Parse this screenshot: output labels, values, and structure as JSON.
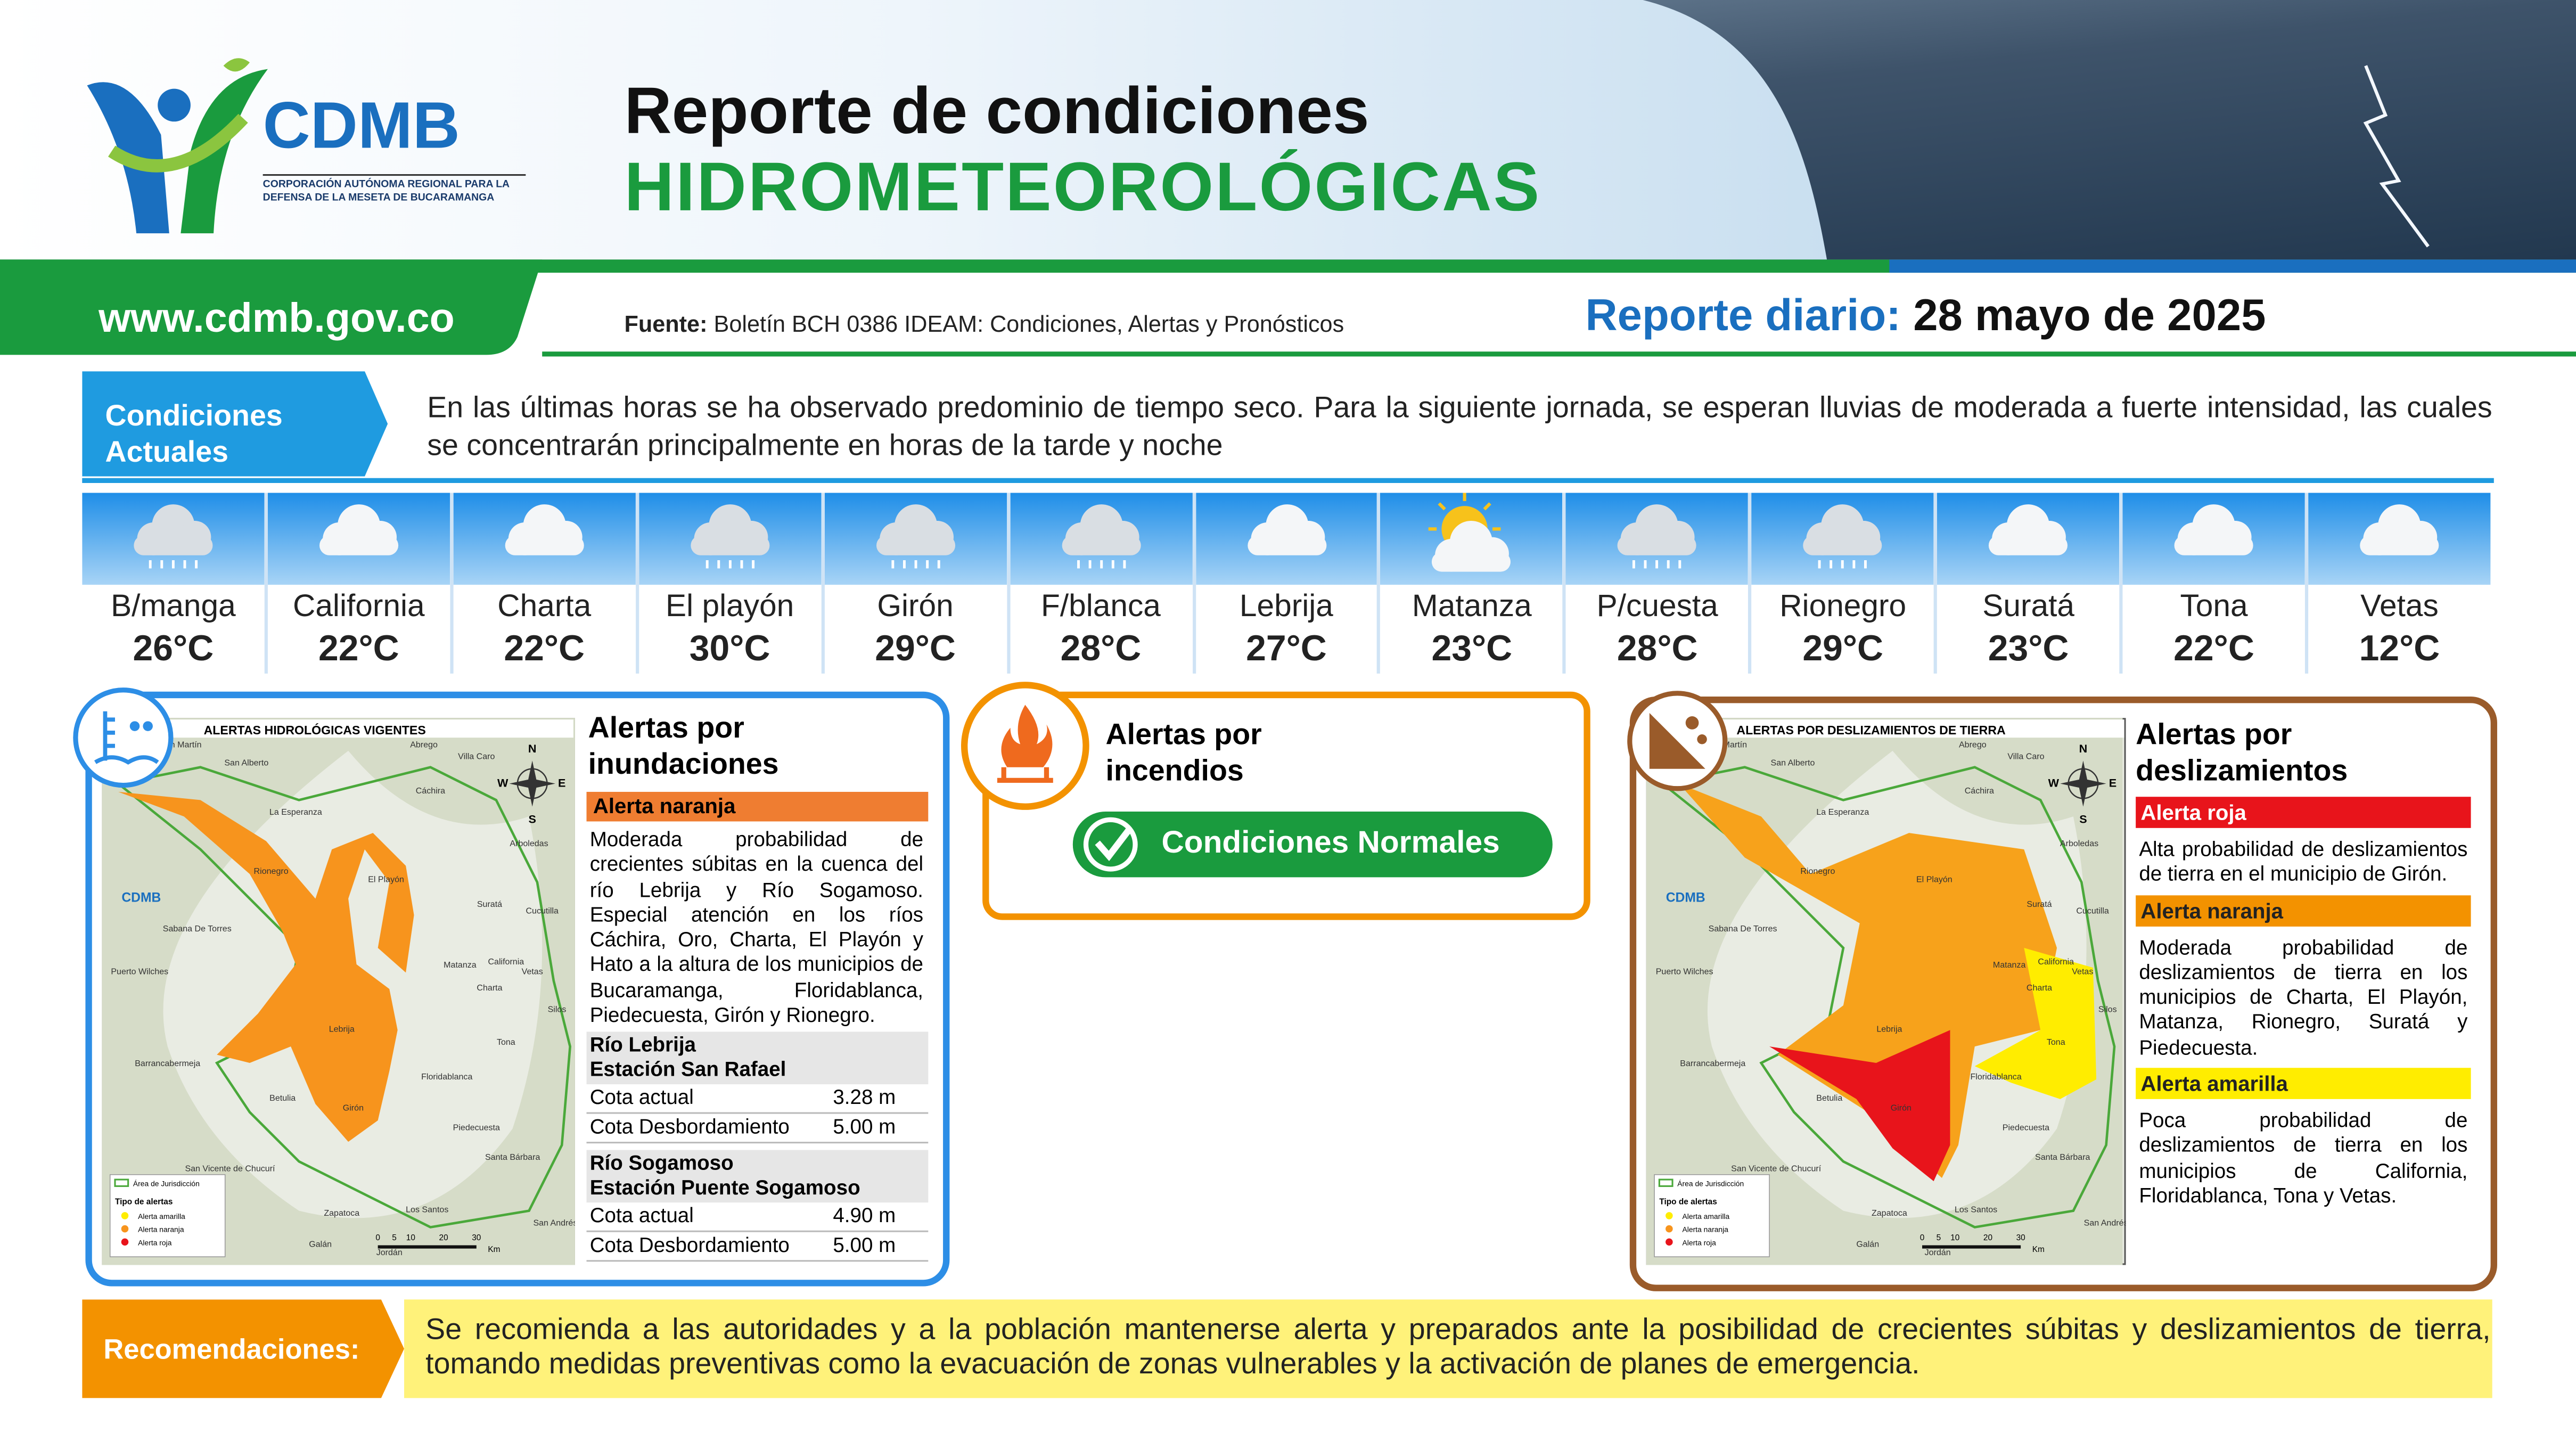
{
  "header": {
    "logo_name": "CDMB",
    "logo_subtitle": "CORPORACIÓN AUTÓNOMA REGIONAL PARA LA DEFENSA DE LA MESETA DE BUCARAMANGA",
    "title_line1": "Reporte de condiciones",
    "title_line2": "HIDROMETEOROLÓGICAS",
    "website": "www.cdmb.gov.co",
    "source_label": "Fuente:",
    "source_text": "Boletín BCH 0386 IDEAM: Condiciones, Alertas y Pronósticos",
    "report_label": "Reporte diario:",
    "report_date": "28 mayo de 2025"
  },
  "conditions": {
    "label": "Condiciones Actuales",
    "text": "En las últimas horas se ha observado predominio de tiempo seco. Para la siguiente jornada, se esperan lluvias de moderada a fuerte intensidad, las cuales se concentrarán principalmente en horas de la tarde y noche"
  },
  "forecast": [
    {
      "city": "B/manga",
      "temp": "26°C",
      "icon": "rain"
    },
    {
      "city": "California",
      "temp": "22°C",
      "icon": "cloud"
    },
    {
      "city": "Charta",
      "temp": "22°C",
      "icon": "cloud"
    },
    {
      "city": "El playón",
      "temp": "30°C",
      "icon": "rain"
    },
    {
      "city": "Girón",
      "temp": "29°C",
      "icon": "rain"
    },
    {
      "city": "F/blanca",
      "temp": "28°C",
      "icon": "rain"
    },
    {
      "city": "Lebrija",
      "temp": "27°C",
      "icon": "cloud"
    },
    {
      "city": "Matanza",
      "temp": "23°C",
      "icon": "sun-cloud"
    },
    {
      "city": "P/cuesta",
      "temp": "28°C",
      "icon": "rain"
    },
    {
      "city": "Rionegro",
      "temp": "29°C",
      "icon": "rain"
    },
    {
      "city": "Suratá",
      "temp": "23°C",
      "icon": "cloud"
    },
    {
      "city": "Tona",
      "temp": "22°C",
      "icon": "cloud"
    },
    {
      "city": "Vetas",
      "temp": "12°C",
      "icon": "cloud"
    }
  ],
  "flood_alerts": {
    "map_title": "ALERTAS HIDROLÓGICAS VIGENTES",
    "title": "Alertas por inundaciones",
    "level": "Alerta naranja",
    "text": "Moderada probabilidad de crecientes súbitas en la cuenca del río Lebrija y Río Sogamoso. Especial atención en los ríos Cáchira, Oro, Charta, El Playón y Hato a la altura de los municipios de Bucaramanga, Floridablanca, Piedecuesta, Girón y Rionegro.",
    "stations": [
      {
        "river": "Río Lebrija",
        "station": "Estación San Rafael",
        "rows": [
          [
            "Cota actual",
            "3.28 m"
          ],
          [
            "Cota Desbordamiento",
            "5.00 m"
          ]
        ]
      },
      {
        "river": "Río Sogamoso",
        "station": "Estación Puente Sogamoso",
        "rows": [
          [
            "Cota actual",
            "4.90 m"
          ],
          [
            "Cota Desbordamiento",
            "5.00 m"
          ]
        ]
      }
    ]
  },
  "fire_alerts": {
    "title": "Alertas por incendios",
    "status": "Condiciones Normales"
  },
  "landslide_alerts": {
    "map_title": "ALERTAS POR DESLIZAMIENTOS DE TIERRA",
    "title": "Alertas por deslizamientos",
    "alerts": [
      {
        "level": "Alerta roja",
        "color": "#e8141b",
        "text": "Alta probabilidad de deslizamientos de tierra en el municipio de Girón."
      },
      {
        "level": "Alerta naranja",
        "color": "#f39200",
        "text": "Moderada probabilidad de deslizamientos de tierra en los municipios de Charta, El Playón, Matanza, Rionegro, Suratá y Piedecuesta."
      },
      {
        "level": "Alerta amarilla",
        "color": "#ffed00",
        "text": "Poca probabilidad de deslizamientos de tierra en los municipios de California, Floridablanca, Tona y Vetas."
      }
    ]
  },
  "map_common": {
    "places": [
      "San Martín",
      "Abrego",
      "Villa Caro",
      "San Alberto",
      "Cáchira",
      "La Esperanza",
      "Rionegro",
      "El Playón",
      "Suratá",
      "Cucutilla",
      "Arboledas",
      "Sabana De Torres",
      "Puerto Wilches",
      "Matanza",
      "California",
      "Vetas",
      "Charta",
      "Lebrija",
      "Tona",
      "Silos",
      "Barrancabermeja",
      "Betulia",
      "Girón",
      "Floridablanca",
      "Piedecuesta",
      "San Vicente de Chucurí",
      "Los Santos",
      "Zapatoca",
      "Galán",
      "Jordán",
      "Santa Bárbara",
      "San Andrés"
    ],
    "compass": [
      "N",
      "E",
      "S",
      "W"
    ],
    "jurisdiction": "Área de Jurisdicción",
    "legend_title": "Tipo de alertas",
    "legend_items": [
      "Alerta amarilla",
      "Alerta naranja",
      "Alerta roja"
    ],
    "scale": [
      "0",
      "5",
      "10",
      "20",
      "30"
    ],
    "scale_unit": "Km"
  },
  "recommendations": {
    "label": "Recomendaciones:",
    "text": "Se recomienda a las autoridades y a la población mantenerse alerta y preparados ante la posibilidad de crecientes súbitas y deslizamientos de tierra, tomando medidas preventivas como la evacuación de zonas vulnerables y la activación de planes de emergencia."
  }
}
